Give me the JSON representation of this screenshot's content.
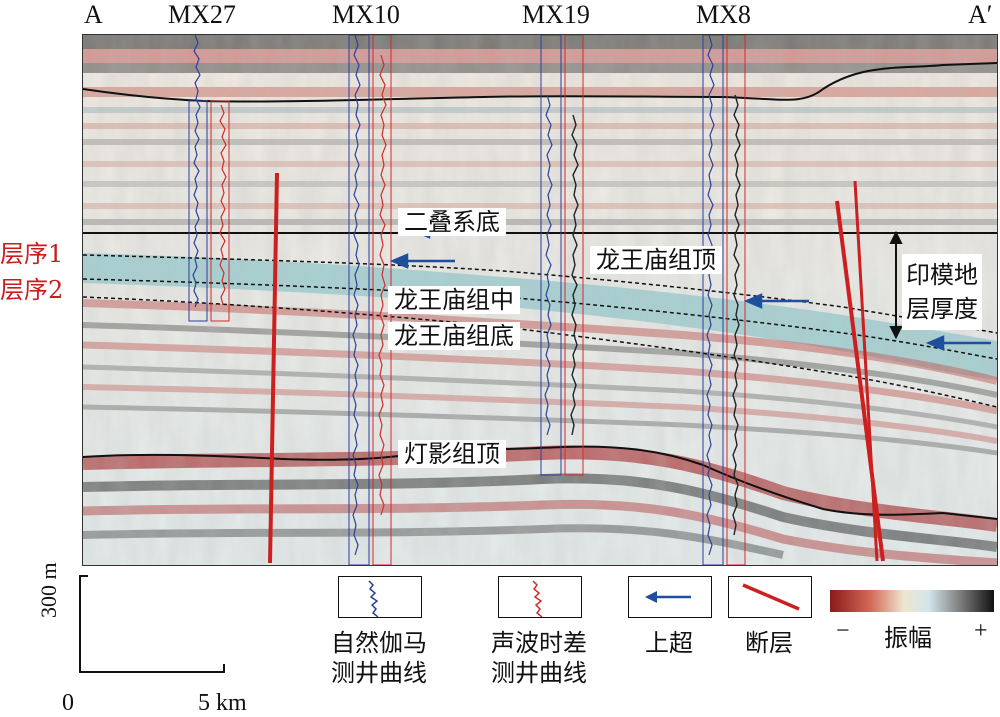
{
  "section": {
    "left_label": "A",
    "right_label": "A′",
    "wells": [
      "MX27",
      "MX10",
      "MX19",
      "MX8"
    ]
  },
  "sequences": {
    "seq1": "层序1",
    "seq2": "层序2"
  },
  "annotations": {
    "permian_base": "二叠系底",
    "lwm_top": "龙王庙组顶",
    "lwm_mid": "龙王庙组中",
    "lwm_base": "龙王庙组底",
    "dengying_top": "灯影组顶",
    "mold_thickness_line1": "印模地",
    "mold_thickness_line2": "层厚度"
  },
  "scale": {
    "vertical": "300 m",
    "h_zero": "0",
    "h_end": "5 km"
  },
  "legend": {
    "gamma_line1": "自然伽马",
    "gamma_line2": "测井曲线",
    "sonic_line1": "声波时差",
    "sonic_line2": "测井曲线",
    "onlap": "上超",
    "fault": "断层",
    "amp_minus": "−",
    "amp_label": "振幅",
    "amp_plus": "+"
  },
  "colors": {
    "gamma": "#2b3f9e",
    "sonic": "#d42a2a",
    "fault": "#cc1f1f",
    "onlap_arrow": "#1f4e9e",
    "sequence_label": "#c61d1d",
    "amp_neg": "#8b1a1a",
    "amp_pos": "#111111"
  }
}
